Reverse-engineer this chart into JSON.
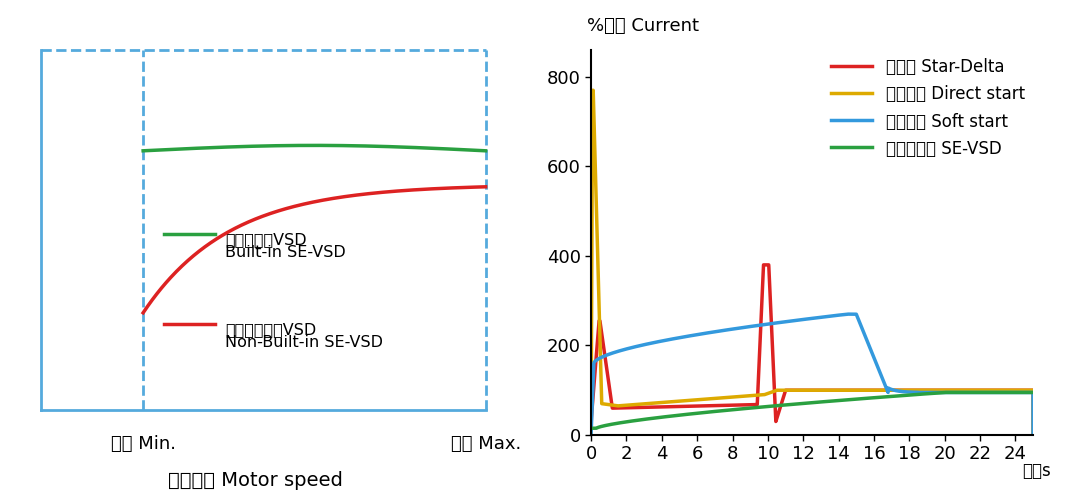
{
  "left_chart": {
    "green_line_label_zh": "内置欧迈克VSD",
    "green_line_label_en": "Built-in SE-VSD",
    "red_line_label_zh": "无内置欧迈克VSD",
    "red_line_label_en": "Non-Built-in SE-VSD",
    "green_color": "#2AA040",
    "red_color": "#DD2222",
    "xlabel_zh": "电机速度 Motor speed",
    "xmin_label": "最小 Min.",
    "xmax_label": "最大 Max.",
    "border_color": "#55AADD",
    "lw": 2.5
  },
  "right_chart": {
    "ylabel": "%电流 Current",
    "xlabel": "时间s",
    "ylim": [
      0,
      860
    ],
    "xlim": [
      0,
      25
    ],
    "yticks": [
      0,
      200,
      400,
      600,
      800
    ],
    "xticks": [
      0,
      2,
      4,
      6,
      8,
      10,
      12,
      14,
      16,
      18,
      20,
      22,
      24
    ],
    "star_delta_color": "#DD2222",
    "direct_start_color": "#DDAA00",
    "soft_start_color": "#3399DD",
    "se_vsd_color": "#2AA040",
    "legend_labels": [
      "星三角 Star-Delta",
      "直接启动 Direct start",
      "软接启动 Soft start",
      "欧迈克变频 SE-VSD"
    ],
    "lw": 2.5
  }
}
